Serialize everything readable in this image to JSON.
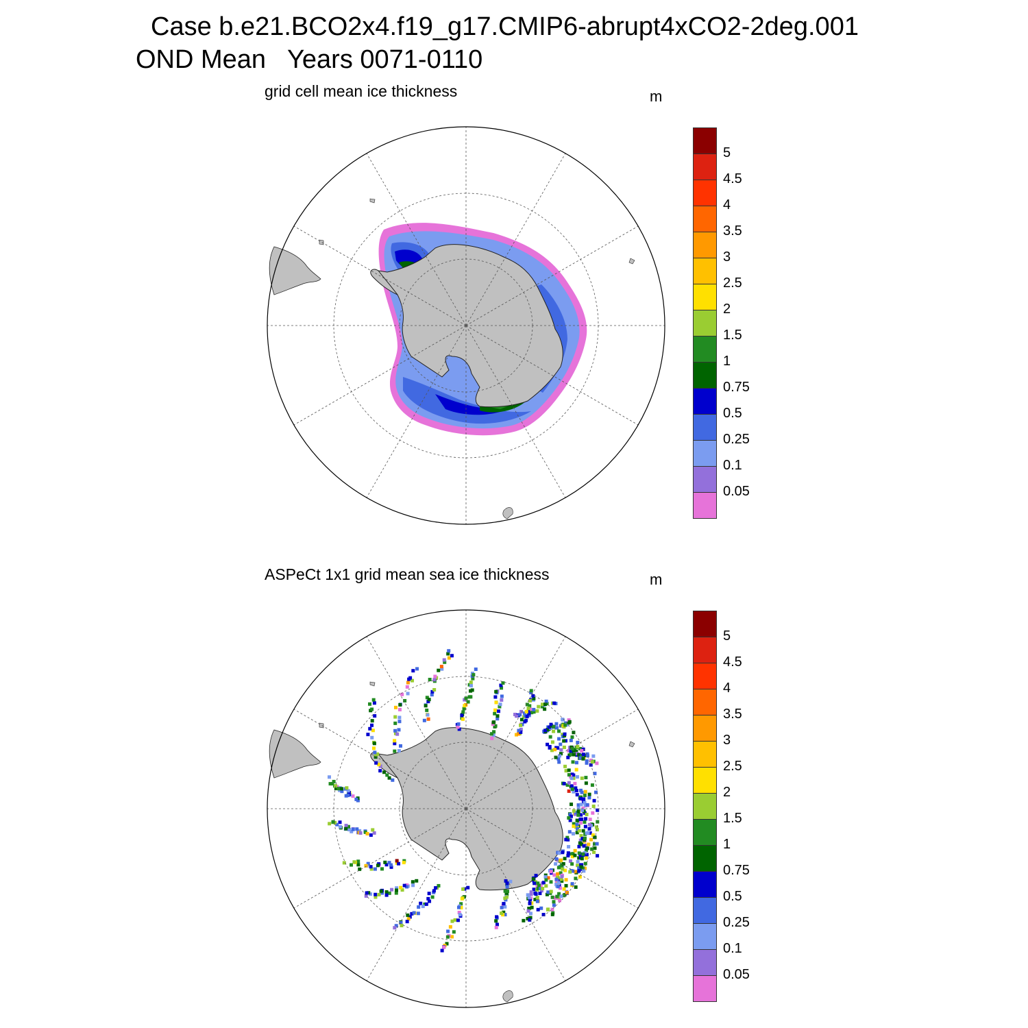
{
  "header": {
    "case_line": "Case b.e21.BCO2x4.f19_g17.CMIP6-abrupt4xCO2-2deg.001",
    "period_line": "OND Mean   Years 0071-0110"
  },
  "colorbar": {
    "levels": [
      "0.05",
      "0.1",
      "0.25",
      "0.5",
      "0.75",
      "1",
      "1.5",
      "2",
      "2.5",
      "3",
      "3.5",
      "4",
      "4.5",
      "5"
    ],
    "colors": [
      "#e673d9",
      "#9370db",
      "#7b9cf0",
      "#4169e1",
      "#0000cd",
      "#006400",
      "#228b22",
      "#9acd32",
      "#ffe000",
      "#ffc000",
      "#ff9900",
      "#ff6600",
      "#ff3300",
      "#dd2211",
      "#8b0000"
    ]
  },
  "colors": {
    "land": "#c0c0c0",
    "grid": "#555555"
  },
  "panels": [
    {
      "id": "model",
      "title": "grid cell mean ice thickness",
      "units": "m"
    },
    {
      "id": "obs",
      "title": "ASPeCt 1x1 grid mean sea ice thickness",
      "units": "m"
    }
  ]
}
